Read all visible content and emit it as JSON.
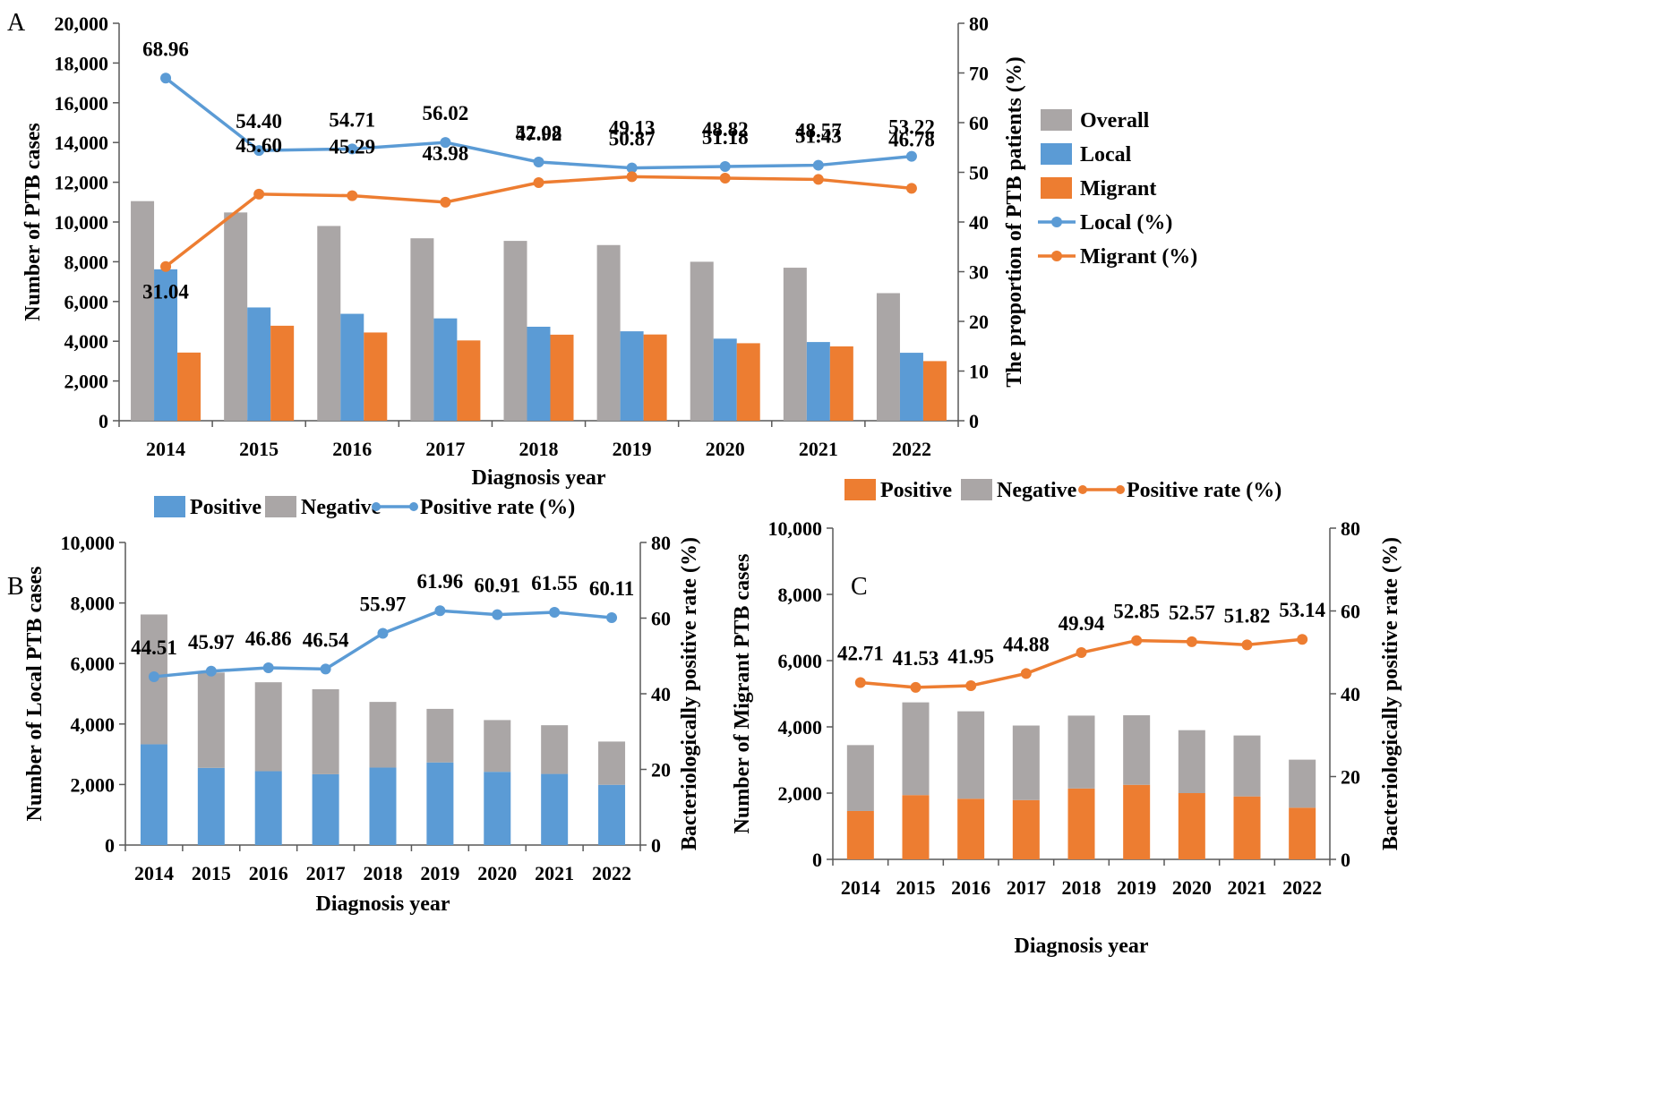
{
  "colors": {
    "overall": "#aaa6a6",
    "local": "#5b9bd5",
    "migrant": "#ed7d31",
    "negative": "#aaa6a6",
    "axis": "#595959"
  },
  "chart_data": [
    {
      "panel": "A",
      "type": "bar+line",
      "categories": [
        "2014",
        "2015",
        "2016",
        "2017",
        "2018",
        "2019",
        "2020",
        "2021",
        "2022"
      ],
      "xlabel": "Diagnosis year",
      "ylabel": "Number of PTB cases",
      "y2label": "The proportion of PTB patients (%)",
      "ylim": [
        0,
        20000
      ],
      "y2lim": [
        0,
        80
      ],
      "yticks": [
        "0",
        "2,000",
        "4,000",
        "6,000",
        "8,000",
        "10,000",
        "12,000",
        "14,000",
        "16,000",
        "18,000",
        "20,000"
      ],
      "y2ticks": [
        "0",
        "10",
        "20",
        "30",
        "40",
        "50",
        "60",
        "70",
        "80"
      ],
      "legend_position": "right",
      "bar_series": [
        {
          "name": "Overall",
          "values": [
            11050,
            10480,
            9800,
            9180,
            9050,
            8840,
            8000,
            7700,
            6420
          ]
        },
        {
          "name": "Local",
          "values": [
            7620,
            5700,
            5380,
            5150,
            4730,
            4500,
            4130,
            3960,
            3420
          ]
        },
        {
          "name": "Migrant",
          "values": [
            3430,
            4780,
            4440,
            4040,
            4330,
            4340,
            3900,
            3740,
            3000
          ]
        }
      ],
      "line_series": [
        {
          "name": "Local (%)",
          "values": [
            68.96,
            54.4,
            54.71,
            56.02,
            52.08,
            50.87,
            51.18,
            51.43,
            53.22
          ],
          "labels": [
            "68.96",
            "54.40",
            "54.71",
            "56.02",
            "52.08",
            "50.87",
            "51.18",
            "51.43",
            "53.22"
          ]
        },
        {
          "name": "Migrant (%)",
          "values": [
            31.04,
            45.6,
            45.29,
            43.98,
            47.92,
            49.13,
            48.82,
            48.57,
            46.78
          ],
          "labels": [
            "31.04",
            "45.60",
            "45.29",
            "43.98",
            "47.92",
            "49.13",
            "48.82",
            "48.57",
            "46.78"
          ]
        }
      ]
    },
    {
      "panel": "B",
      "type": "stacked-bar+line",
      "categories": [
        "2014",
        "2015",
        "2016",
        "2017",
        "2018",
        "2019",
        "2020",
        "2021",
        "2022"
      ],
      "xlabel": "Diagnosis year",
      "ylabel": "Number of  Local PTB cases",
      "y2label": "Bacteriologically positive rate (%)",
      "ylim": [
        0,
        10000
      ],
      "y2lim": [
        0,
        80
      ],
      "yticks": [
        "0",
        "2,000",
        "4,000",
        "6,000",
        "8,000",
        "10,000"
      ],
      "y2ticks": [
        "0",
        "20",
        "40",
        "60",
        "80"
      ],
      "legend_position": "top",
      "series": [
        {
          "name": "Positive",
          "values": [
            3330,
            2550,
            2440,
            2340,
            2560,
            2730,
            2420,
            2350,
            1990
          ]
        },
        {
          "name": "Negative",
          "values": [
            4290,
            3150,
            2940,
            2810,
            2170,
            1770,
            1710,
            1610,
            1430
          ]
        }
      ],
      "line_series": [
        {
          "name": "Positive rate (%)",
          "values": [
            44.51,
            45.97,
            46.86,
            46.54,
            55.97,
            61.96,
            60.91,
            61.55,
            60.11
          ],
          "labels": [
            "44.51",
            "45.97",
            "46.86",
            "46.54",
            "55.97",
            "61.96",
            "60.91",
            "61.55",
            "60.11"
          ]
        }
      ]
    },
    {
      "panel": "C",
      "type": "stacked-bar+line",
      "categories": [
        "2014",
        "2015",
        "2016",
        "2017",
        "2018",
        "2019",
        "2020",
        "2021",
        "2022"
      ],
      "xlabel": "Diagnosis year",
      "ylabel": "Number of  Migrant PTB cases",
      "y2label": "Bacteriologically positive rate (%)",
      "ylim": [
        0,
        10000
      ],
      "y2lim": [
        0,
        80
      ],
      "yticks": [
        "0",
        "2,000",
        "4,000",
        "6,000",
        "8,000",
        "10,000"
      ],
      "y2ticks": [
        "0",
        "20",
        "40",
        "60",
        "80"
      ],
      "legend_position": "top",
      "series": [
        {
          "name": "Positive",
          "values": [
            1460,
            1940,
            1830,
            1790,
            2140,
            2250,
            2000,
            1900,
            1560
          ]
        },
        {
          "name": "Negative",
          "values": [
            1990,
            2800,
            2640,
            2250,
            2200,
            2100,
            1900,
            1840,
            1450
          ]
        }
      ],
      "line_series": [
        {
          "name": "Positive rate (%)",
          "values": [
            42.71,
            41.53,
            41.95,
            44.88,
            49.94,
            52.85,
            52.57,
            51.82,
            53.14
          ],
          "labels": [
            "42.71",
            "41.53",
            "41.95",
            "44.88",
            "49.94",
            "52.85",
            "52.57",
            "51.82",
            "53.14"
          ]
        }
      ]
    }
  ]
}
